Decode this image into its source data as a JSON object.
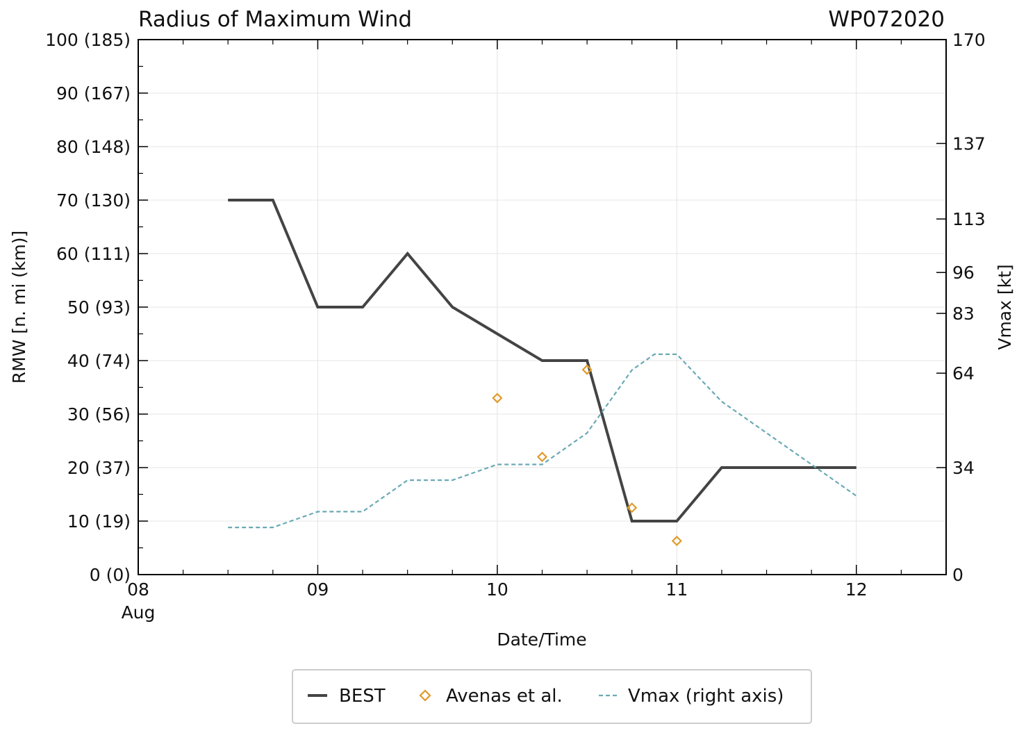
{
  "chart_data": {
    "type": "line",
    "title": "Radius of Maximum Wind",
    "storm_id": "WP072020",
    "xlabel": "Date/Time",
    "ylabel_left": "RMW [n. mi (km)]",
    "ylabel_right": "Vmax [kt]",
    "xlim": [
      8.0,
      12.5
    ],
    "ylim_left": [
      0,
      100
    ],
    "ylim_right": [
      0,
      170
    ],
    "x_ticks": [
      {
        "value": 8,
        "label": "08",
        "sublabel": "Aug"
      },
      {
        "value": 9,
        "label": "09",
        "sublabel": ""
      },
      {
        "value": 10,
        "label": "10",
        "sublabel": ""
      },
      {
        "value": 11,
        "label": "11",
        "sublabel": ""
      },
      {
        "value": 12,
        "label": "12",
        "sublabel": ""
      }
    ],
    "y_ticks_left": [
      {
        "value": 0,
        "label": "0 (0)"
      },
      {
        "value": 10,
        "label": "10 (19)"
      },
      {
        "value": 20,
        "label": "20 (37)"
      },
      {
        "value": 30,
        "label": "30 (56)"
      },
      {
        "value": 40,
        "label": "40 (74)"
      },
      {
        "value": 50,
        "label": "50 (93)"
      },
      {
        "value": 60,
        "label": "60 (111)"
      },
      {
        "value": 70,
        "label": "70 (130)"
      },
      {
        "value": 80,
        "label": "80 (148)"
      },
      {
        "value": 90,
        "label": "90 (167)"
      },
      {
        "value": 100,
        "label": "100 (185)"
      }
    ],
    "y_ticks_right": [
      {
        "value": 0,
        "label": "0"
      },
      {
        "value": 34,
        "label": "34"
      },
      {
        "value": 64,
        "label": "64"
      },
      {
        "value": 83,
        "label": "83"
      },
      {
        "value": 96,
        "label": "96"
      },
      {
        "value": 113,
        "label": "113"
      },
      {
        "value": 137,
        "label": "137"
      },
      {
        "value": 170,
        "label": "170"
      }
    ],
    "grid": true,
    "legend_position": "bottom-center",
    "series": [
      {
        "name": "BEST",
        "style": "solid",
        "color": "#444444",
        "axis": "left",
        "x": [
          8.5,
          8.75,
          9.0,
          9.25,
          9.5,
          9.75,
          10.0,
          10.25,
          10.5,
          10.75,
          11.0,
          11.25,
          11.5,
          11.75,
          12.0
        ],
        "y": [
          70,
          70,
          50,
          50,
          60,
          50,
          45,
          40,
          40,
          10,
          10,
          20,
          20,
          20,
          20
        ]
      },
      {
        "name": "Avenas et al.",
        "style": "marker-diamond",
        "color": "#e09a2a",
        "axis": "left",
        "x": [
          10.0,
          10.25,
          10.5,
          10.75,
          11.0
        ],
        "y": [
          33,
          22,
          38.3,
          12.5,
          6.3
        ]
      },
      {
        "name": "Vmax (right axis)",
        "style": "dashed",
        "color": "#6aa9b5",
        "axis": "right",
        "x": [
          8.5,
          8.75,
          9.0,
          9.25,
          9.5,
          9.75,
          10.0,
          10.25,
          10.5,
          10.75,
          10.875,
          11.0,
          11.25,
          11.5,
          11.75,
          12.0
        ],
        "y": [
          15,
          15,
          20,
          20,
          30,
          30,
          35,
          35,
          45,
          65,
          70,
          70,
          55,
          45,
          35,
          25
        ]
      }
    ]
  }
}
